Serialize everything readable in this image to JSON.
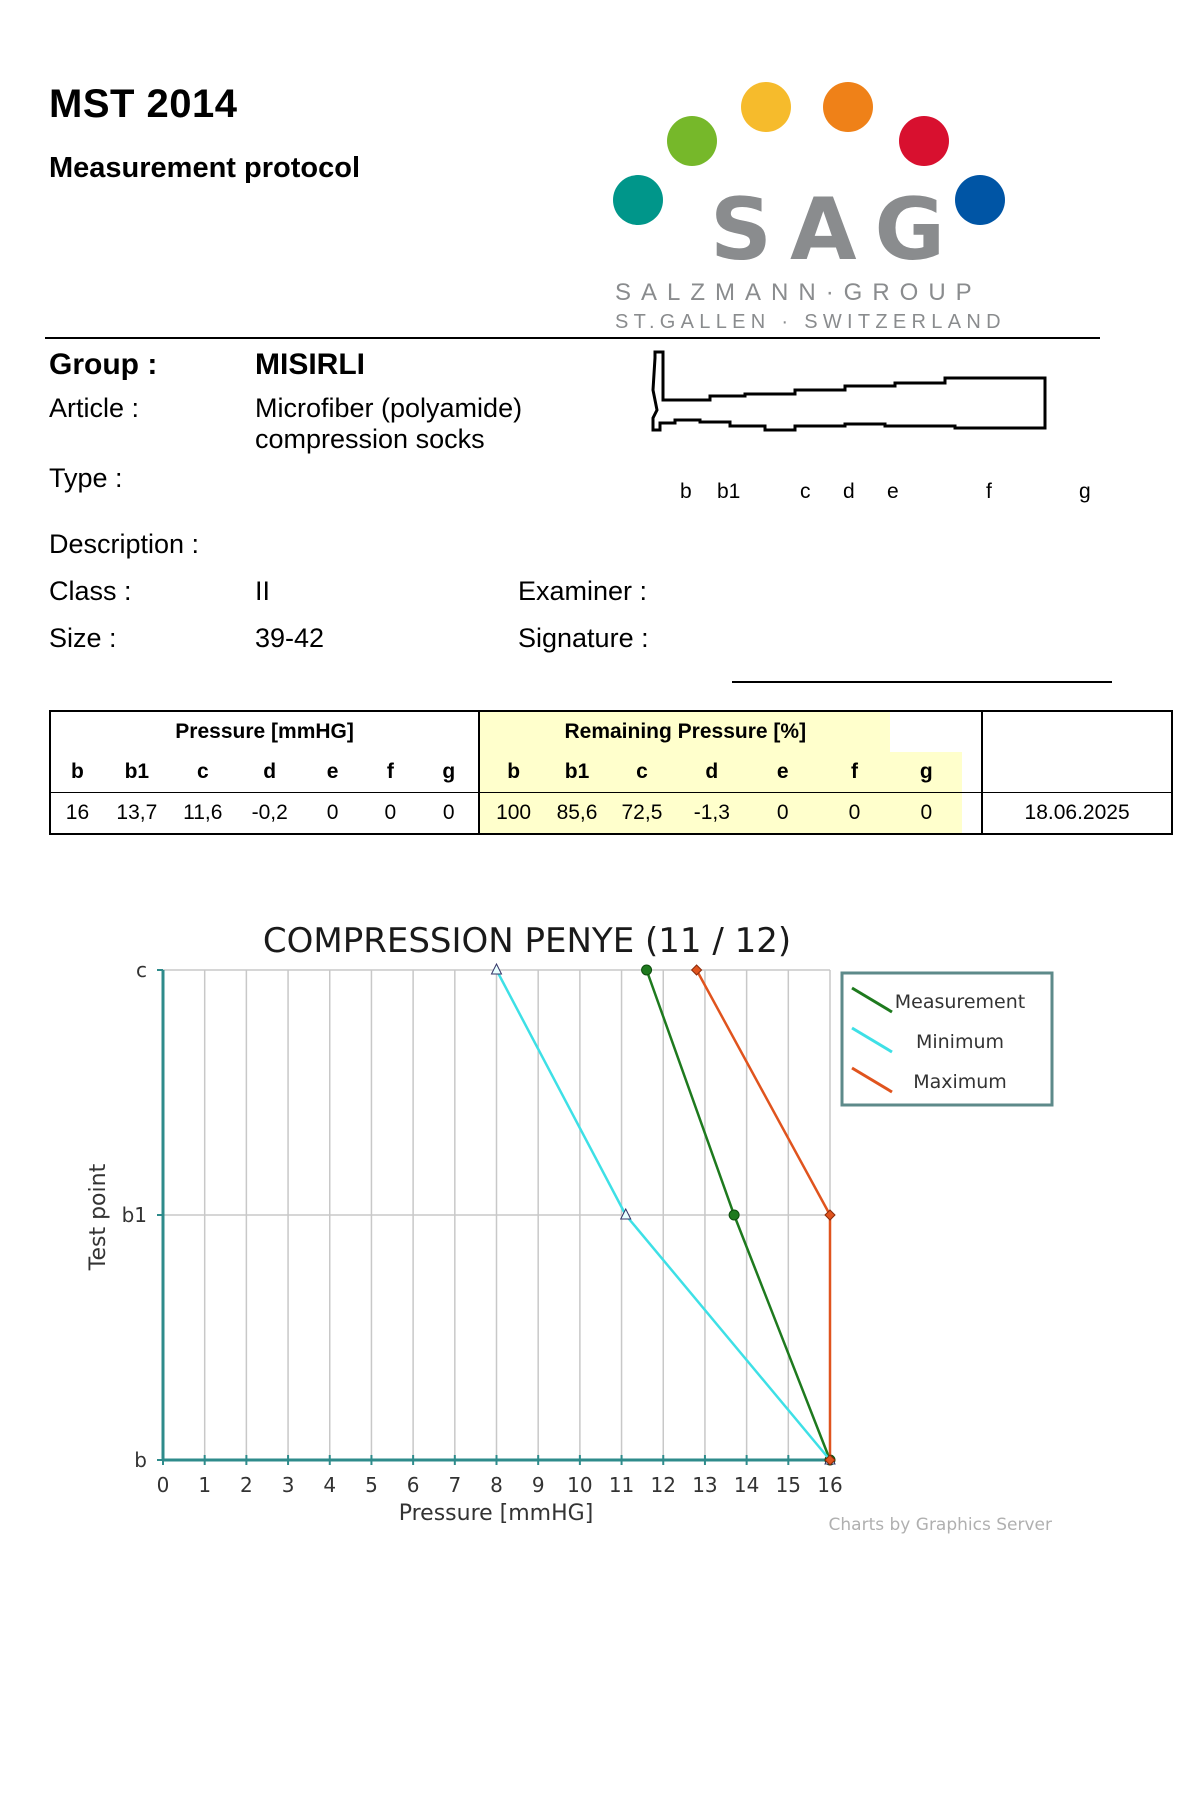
{
  "header": {
    "title": "MST 2014",
    "subtitle": "Measurement protocol"
  },
  "logo": {
    "wordmark": "SAG",
    "line1": "SALZMANN·GROUP",
    "line2": "ST.GALLEN · SWITZERLAND",
    "dot_colors": [
      "#00968a",
      "#76b82a",
      "#f6bb2c",
      "#ef8118",
      "#d8102f",
      "#0055a5"
    ]
  },
  "info": {
    "group_label": "Group :",
    "group_value": "MISIRLI",
    "article_label": "Article :",
    "article_line1": "Microfiber (polyamide)",
    "article_line2": "compression socks",
    "type_label": "Type :",
    "description_label": "Description :",
    "class_label": "Class :",
    "class_value": "II",
    "size_label": "Size :",
    "size_value": "39-42",
    "examiner_label": "Examiner :",
    "signature_label": "Signature :"
  },
  "leg_points": [
    "b",
    "b1",
    "c",
    "d",
    "e",
    "f",
    "g"
  ],
  "table": {
    "pressure_header": "Pressure [mmHG]",
    "remaining_header": "Remaining Pressure [%]",
    "columns": [
      "b",
      "b1",
      "c",
      "d",
      "e",
      "f",
      "g"
    ],
    "pressure_values": [
      "16",
      "13,7",
      "11,6",
      "-0,2",
      "0",
      "0",
      "0"
    ],
    "remaining_values": [
      "100",
      "85,6",
      "72,5",
      "-1,3",
      "0",
      "0",
      "0"
    ],
    "date": "18.06.2025"
  },
  "chart_data": {
    "type": "line",
    "title": "COMPRESSION PENYE (11 / 12)",
    "xlabel": "Pressure [mmHG]",
    "ylabel": "Test point",
    "xlim": [
      0,
      16
    ],
    "x_ticks": [
      "0",
      "1",
      "2",
      "3",
      "4",
      "5",
      "6",
      "7",
      "8",
      "9",
      "10",
      "11",
      "12",
      "13",
      "14",
      "15",
      "16"
    ],
    "y_categories": [
      "b",
      "b1",
      "c"
    ],
    "grid": true,
    "legend_position": "top-right",
    "series": [
      {
        "name": "Measurement",
        "color": "#1e7a1e",
        "marker": "circle",
        "x": [
          16,
          13.7,
          11.6
        ],
        "y": [
          "b",
          "b1",
          "c"
        ]
      },
      {
        "name": "Minimum",
        "color": "#3ee0e6",
        "marker": "triangle",
        "x": [
          16,
          11.1,
          8
        ],
        "y": [
          "b",
          "b1",
          "c"
        ]
      },
      {
        "name": "Maximum",
        "color": "#e0541e",
        "marker": "diamond",
        "x": [
          16,
          16,
          12.8
        ],
        "y": [
          "b",
          "b1",
          "c"
        ]
      }
    ],
    "credit": "Charts by Graphics Server"
  }
}
